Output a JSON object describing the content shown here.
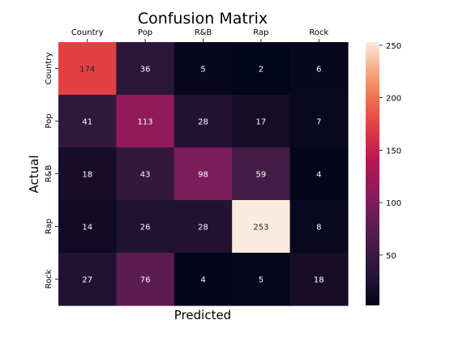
{
  "chart_data": {
    "type": "heatmap",
    "title": "Confusion Matrix",
    "xlabel": "Predicted",
    "ylabel": "Actual",
    "x_categories": [
      "Country",
      "Pop",
      "R&B",
      "Rap",
      "Rock"
    ],
    "y_categories": [
      "Country",
      "Pop",
      "R&B",
      "Rap",
      "Rock"
    ],
    "values": [
      [
        174,
        36,
        5,
        2,
        6
      ],
      [
        41,
        113,
        28,
        17,
        7
      ],
      [
        18,
        43,
        98,
        59,
        4
      ],
      [
        14,
        26,
        28,
        253,
        8
      ],
      [
        27,
        76,
        4,
        5,
        18
      ]
    ],
    "x_tick_position": "top",
    "colorbar": {
      "ticks": [
        50,
        100,
        150,
        200,
        250
      ],
      "range": [
        2,
        253
      ],
      "colormap": "rocket"
    },
    "grid": false
  }
}
